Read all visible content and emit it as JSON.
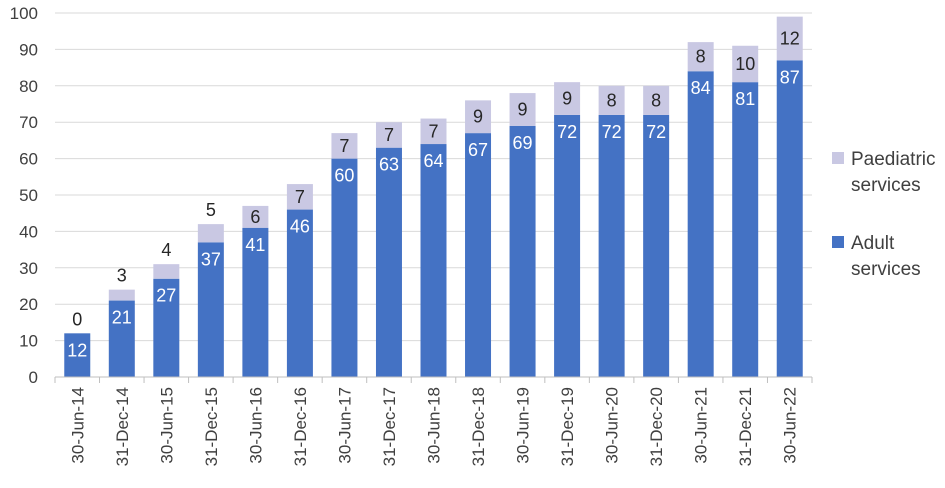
{
  "chart_data": {
    "type": "bar",
    "stacked": true,
    "categories": [
      "30-Jun-14",
      "31-Dec-14",
      "30-Jun-15",
      "31-Dec-15",
      "30-Jun-16",
      "31-Dec-16",
      "30-Jun-17",
      "31-Dec-17",
      "30-Jun-18",
      "31-Dec-18",
      "30-Jun-19",
      "31-Dec-19",
      "30-Jun-20",
      "31-Dec-20",
      "30-Jun-21",
      "31-Dec-21",
      "30-Jun-22"
    ],
    "series": [
      {
        "name": "Adult services",
        "color": "#4472C4",
        "values": [
          12,
          21,
          27,
          37,
          41,
          46,
          60,
          63,
          64,
          67,
          69,
          72,
          72,
          72,
          84,
          81,
          87
        ]
      },
      {
        "name": "Paediatric services",
        "color": "#C9C8E3",
        "values": [
          0,
          3,
          4,
          5,
          6,
          7,
          7,
          7,
          7,
          9,
          9,
          9,
          8,
          8,
          8,
          10,
          12
        ]
      }
    ],
    "ylim": [
      0,
      100
    ],
    "yticks": [
      0,
      10,
      20,
      30,
      40,
      50,
      60,
      70,
      80,
      90,
      100
    ],
    "grid": true,
    "legend": "right",
    "legend_order": [
      "Paediatric services",
      "Adult services"
    ],
    "legend_lines": {
      "Paediatric services": [
        "Paediatric",
        "services"
      ],
      "Adult services": [
        "Adult",
        "services"
      ]
    },
    "title": "",
    "xlabel": "",
    "ylabel": ""
  }
}
